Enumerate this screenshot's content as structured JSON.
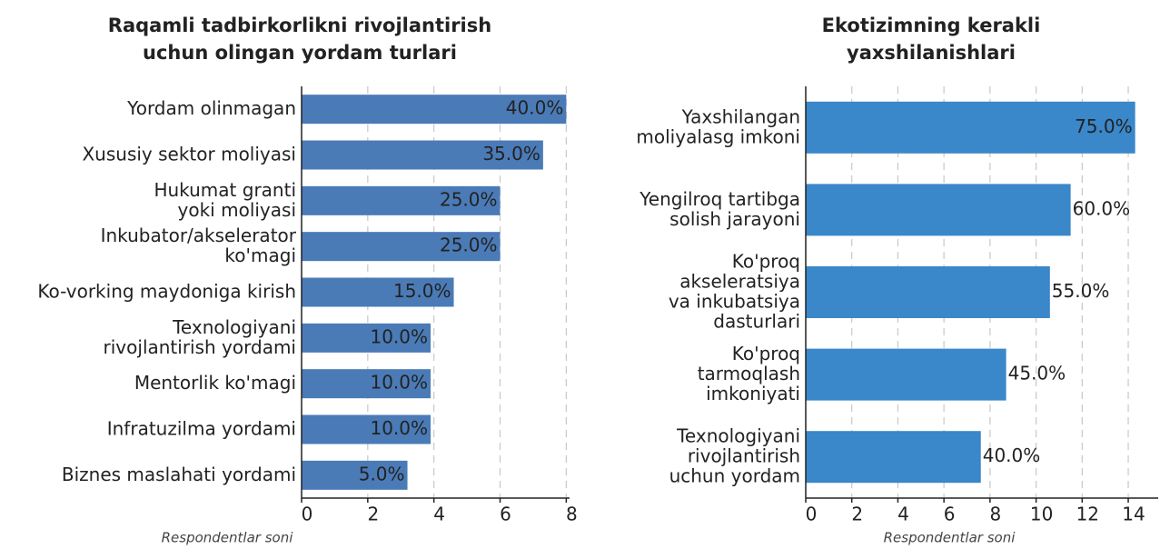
{
  "chart_data": [
    {
      "type": "bar",
      "orientation": "horizontal",
      "title": "Raqamli tadbirkorlikni rivojlantirish\nuchun olingan yordam turlari",
      "xlabel": "Respondentlar soni",
      "categories": [
        "Yordam olinmagan",
        "Xususiy sektor moliyasi",
        "Hukumat granti\nyoki moliyasi",
        "Inkubator/akselerator\nko'magi",
        "Ko-vorking maydoniga kirish",
        "Texnologiyani\nrivojlantirish yordami",
        "Mentorlik ko'magi",
        "Infratuzilma yordami",
        "Biznes maslahati yordami"
      ],
      "values": [
        8,
        7.3,
        6,
        6,
        4.6,
        3.9,
        3.9,
        3.9,
        3.2
      ],
      "value_labels": [
        "40.0%",
        "35.0%",
        "25.0%",
        "25.0%",
        "15.0%",
        "10.0%",
        "10.0%",
        "10.0%",
        "5.0%"
      ],
      "color": "#4a7bb7",
      "label_color": "#ffffff",
      "xlim": [
        0,
        8.1
      ],
      "xticks": [
        0,
        2,
        4,
        6,
        8
      ],
      "grid": true
    },
    {
      "type": "bar",
      "orientation": "horizontal",
      "title": "Ekotizimning kerakli\nyaxshilanishlari",
      "xlabel": "Respondentlar soni",
      "categories": [
        "Yaxshilangan\nmoliyalasg imkoni",
        "Yengilroq tartibga\nsolish jarayoni",
        "Ko'proq\nakseleratsiya\nva inkubatsiya\ndasturlari",
        "Ko'proq\ntarmoqlash\nimkoniyati",
        "Texnologiyani\nrivojlantirish\nuchun yordam"
      ],
      "values": [
        14.3,
        11.5,
        10.6,
        8.7,
        7.6
      ],
      "value_labels": [
        "75.0%",
        "60.0%",
        "55.0%",
        "45.0%",
        "40.0%"
      ],
      "color": "#3a87c9",
      "label_color": "#222222",
      "xlim": [
        0,
        15.3
      ],
      "xticks": [
        0,
        2,
        4,
        6,
        8,
        10,
        12,
        14
      ],
      "grid": true
    }
  ]
}
